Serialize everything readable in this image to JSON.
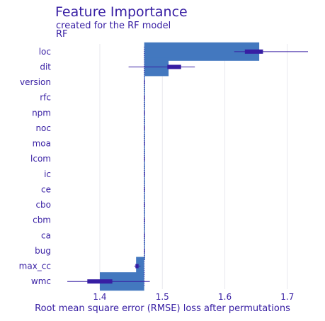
{
  "chart_data": {
    "type": "bar",
    "title": "Feature Importance",
    "subtitle": "created for the RF model",
    "facet_label": "RF",
    "xlabel": "Root mean square error (RMSE) loss after permutations",
    "baseline": 1.471,
    "xlim": [
      1.34,
      1.75
    ],
    "xticks": [
      1.4,
      1.5,
      1.6,
      1.7
    ],
    "xtick_labels": [
      "1.4",
      "1.5",
      "1.6",
      "1.7"
    ],
    "grid": true,
    "features": [
      "loc",
      "dit",
      "version",
      "rfc",
      "npm",
      "noc",
      "moa",
      "lcom",
      "ic",
      "ce",
      "cbo",
      "cbm",
      "ca",
      "bug",
      "max_cc",
      "wmc"
    ],
    "values": [
      1.655,
      1.51,
      1.471,
      1.471,
      1.471,
      1.471,
      1.471,
      1.471,
      1.471,
      1.471,
      1.471,
      1.471,
      1.471,
      1.471,
      1.458,
      1.4
    ],
    "whisker_min": [
      1.615,
      1.446,
      1.471,
      1.471,
      1.471,
      1.471,
      1.471,
      1.471,
      1.471,
      1.471,
      1.471,
      1.471,
      1.471,
      1.471,
      1.455,
      1.348
    ],
    "whisker_max": [
      1.733,
      1.552,
      1.471,
      1.471,
      1.471,
      1.471,
      1.471,
      1.471,
      1.471,
      1.471,
      1.471,
      1.471,
      1.471,
      1.471,
      1.465,
      1.48
    ],
    "box_q1": [
      1.632,
      1.508,
      1.471,
      1.471,
      1.471,
      1.471,
      1.471,
      1.471,
      1.471,
      1.471,
      1.471,
      1.471,
      1.471,
      1.471,
      1.457,
      1.38
    ],
    "box_q3": [
      1.661,
      1.53,
      1.471,
      1.471,
      1.471,
      1.471,
      1.471,
      1.471,
      1.471,
      1.471,
      1.471,
      1.471,
      1.471,
      1.471,
      1.462,
      1.42
    ],
    "colors": {
      "bar": "#4378bf",
      "box": "#371ea3",
      "text": "#371ea3",
      "grid": "#e8e8ee",
      "baseline": "#371ea3"
    }
  }
}
